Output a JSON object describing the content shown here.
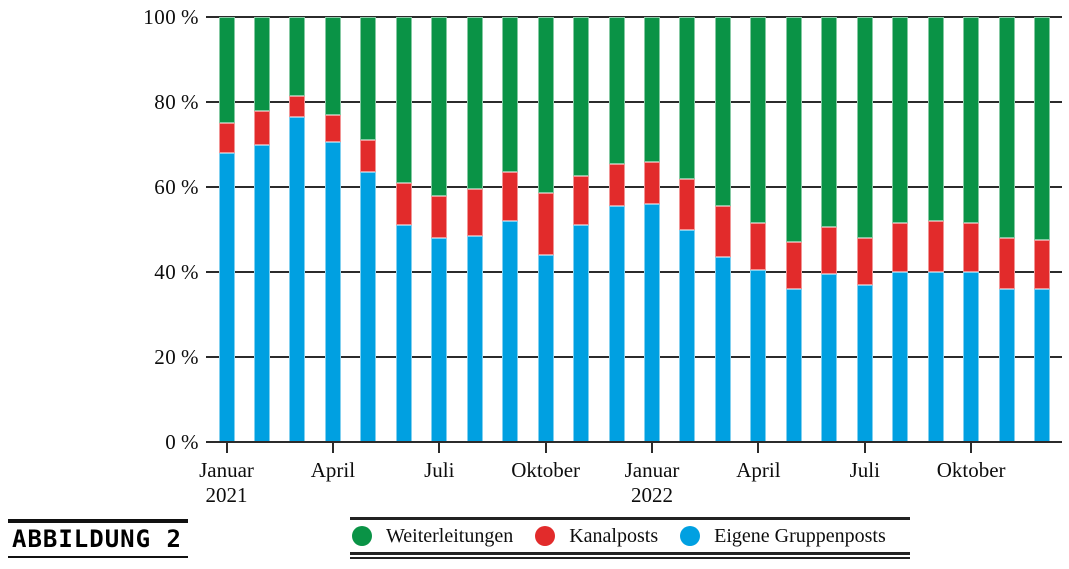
{
  "figure": {
    "label": "ABBILDUNG 2"
  },
  "legend": {
    "items": [
      {
        "label": "Weiterleitungen",
        "color": "#0a9346"
      },
      {
        "label": "Kanalposts",
        "color": "#e22b2b"
      },
      {
        "label": "Eigene Gruppenposts",
        "color": "#00a0e1"
      }
    ]
  },
  "chart_data": {
    "type": "bar",
    "stacked": true,
    "unit": "percent",
    "title": "",
    "xlabel": "",
    "ylabel": "",
    "ylim": [
      0,
      100
    ],
    "grid": true,
    "legend_position": "bottom",
    "stack_order": "bottom-to-top",
    "y_tick_labels": [
      "0 %",
      "20 %",
      "40 %",
      "60 %",
      "80 %",
      "100 %"
    ],
    "categories": [
      "Januar 2021",
      "Februar 2021",
      "März 2021",
      "April 2021",
      "Mai 2021",
      "Juni 2021",
      "Juli 2021",
      "August 2021",
      "September 2021",
      "Oktober 2021",
      "November 2021",
      "Dezember 2021",
      "Januar 2022",
      "Februar 2022",
      "März 2022",
      "April 2022",
      "Mai 2022",
      "Juni 2022",
      "Juli 2022",
      "August 2022",
      "September 2022",
      "Oktober 2022",
      "November 2022",
      "Dezember 2022"
    ],
    "series": [
      {
        "name": "Eigene Gruppenposts",
        "color": "#00a0e1",
        "values": [
          68,
          70,
          76.5,
          70.5,
          63.5,
          51,
          48,
          48.5,
          52,
          44,
          51,
          55.5,
          56,
          50,
          43.5,
          40.5,
          36,
          39.5,
          37,
          40,
          40,
          40,
          36,
          36
        ]
      },
      {
        "name": "Kanalposts",
        "color": "#e22b2b",
        "values": [
          7,
          8,
          5,
          6.5,
          7.5,
          10,
          10,
          11,
          11.5,
          14.5,
          11.5,
          10,
          10,
          12,
          12,
          11,
          11,
          11,
          11,
          11.5,
          12,
          11.5,
          12,
          11.5
        ]
      },
      {
        "name": "Weiterleitungen",
        "color": "#0a9346",
        "values": [
          25,
          22,
          18.5,
          23,
          29,
          39,
          42,
          40.5,
          36.5,
          41.5,
          37.5,
          34.5,
          34,
          38,
          44.5,
          48.5,
          53,
          49.5,
          52,
          48.5,
          48,
          48.5,
          52,
          52.5
        ]
      }
    ],
    "x_ticks": [
      {
        "category_index": 0,
        "lines": [
          "Januar",
          "2021"
        ]
      },
      {
        "category_index": 3,
        "lines": [
          "April"
        ]
      },
      {
        "category_index": 6,
        "lines": [
          "Juli"
        ]
      },
      {
        "category_index": 9,
        "lines": [
          "Oktober"
        ]
      },
      {
        "category_index": 12,
        "lines": [
          "Januar",
          "2022"
        ]
      },
      {
        "category_index": 15,
        "lines": [
          "April"
        ]
      },
      {
        "category_index": 18,
        "lines": [
          "Juli"
        ]
      },
      {
        "category_index": 21,
        "lines": [
          "Oktober"
        ]
      }
    ]
  }
}
